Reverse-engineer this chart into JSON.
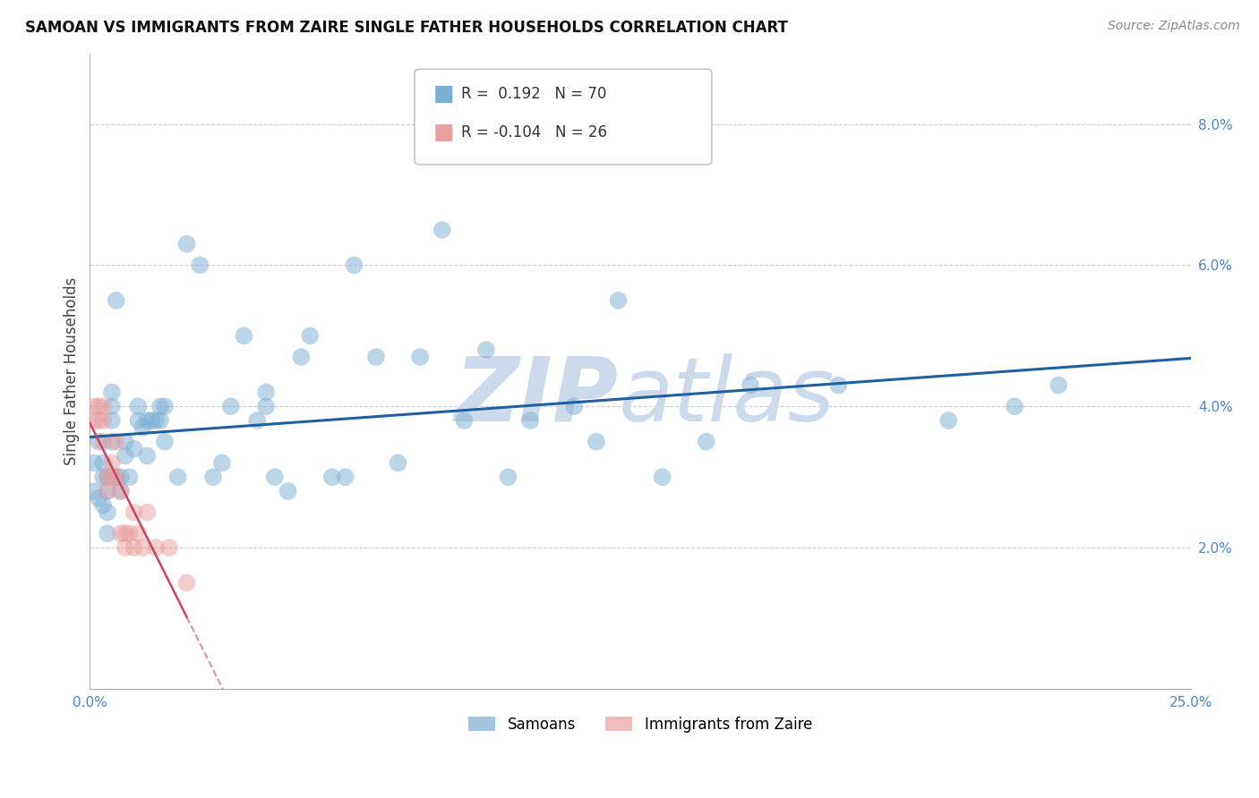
{
  "title": "SAMOAN VS IMMIGRANTS FROM ZAIRE SINGLE FATHER HOUSEHOLDS CORRELATION CHART",
  "source": "Source: ZipAtlas.com",
  "ylabel": "Single Father Households",
  "xlim": [
    0.0,
    0.25
  ],
  "ylim": [
    0.0,
    0.09
  ],
  "xticks": [
    0.0,
    0.05,
    0.1,
    0.15,
    0.2,
    0.25
  ],
  "yticks": [
    0.02,
    0.04,
    0.06,
    0.08
  ],
  "xticklabels": [
    "0.0%",
    "",
    "",
    "",
    "",
    "25.0%"
  ],
  "yticklabels": [
    "2.0%",
    "4.0%",
    "6.0%",
    "8.0%"
  ],
  "samoan_R": 0.192,
  "samoan_N": 70,
  "zaire_R": -0.104,
  "zaire_N": 26,
  "blue_color": "#7bafd4",
  "pink_color": "#e8a0a0",
  "blue_line_color": "#2060a0",
  "pink_line_color": "#d04060",
  "watermark_color": "#ccdaeb",
  "samoan_x": [
    0.001,
    0.001,
    0.002,
    0.002,
    0.003,
    0.003,
    0.003,
    0.004,
    0.004,
    0.004,
    0.004,
    0.005,
    0.005,
    0.005,
    0.005,
    0.005,
    0.006,
    0.006,
    0.007,
    0.007,
    0.008,
    0.008,
    0.009,
    0.01,
    0.011,
    0.011,
    0.012,
    0.013,
    0.013,
    0.014,
    0.015,
    0.016,
    0.016,
    0.017,
    0.017,
    0.02,
    0.022,
    0.025,
    0.028,
    0.03,
    0.032,
    0.035,
    0.038,
    0.04,
    0.04,
    0.042,
    0.045,
    0.048,
    0.05,
    0.055,
    0.058,
    0.06,
    0.065,
    0.07,
    0.075,
    0.08,
    0.085,
    0.09,
    0.095,
    0.1,
    0.11,
    0.115,
    0.12,
    0.13,
    0.14,
    0.15,
    0.17,
    0.195,
    0.21,
    0.22
  ],
  "samoan_y": [
    0.032,
    0.028,
    0.035,
    0.027,
    0.03,
    0.032,
    0.026,
    0.022,
    0.025,
    0.03,
    0.028,
    0.035,
    0.038,
    0.04,
    0.042,
    0.03,
    0.055,
    0.03,
    0.03,
    0.028,
    0.033,
    0.035,
    0.03,
    0.034,
    0.038,
    0.04,
    0.037,
    0.033,
    0.038,
    0.038,
    0.038,
    0.04,
    0.038,
    0.04,
    0.035,
    0.03,
    0.063,
    0.06,
    0.03,
    0.032,
    0.04,
    0.05,
    0.038,
    0.04,
    0.042,
    0.03,
    0.028,
    0.047,
    0.05,
    0.03,
    0.03,
    0.06,
    0.047,
    0.032,
    0.047,
    0.065,
    0.038,
    0.048,
    0.03,
    0.038,
    0.04,
    0.035,
    0.055,
    0.03,
    0.035,
    0.043,
    0.043,
    0.038,
    0.04,
    0.043
  ],
  "zaire_x": [
    0.001,
    0.001,
    0.002,
    0.002,
    0.003,
    0.003,
    0.003,
    0.004,
    0.004,
    0.005,
    0.005,
    0.006,
    0.006,
    0.007,
    0.007,
    0.008,
    0.008,
    0.009,
    0.01,
    0.01,
    0.011,
    0.012,
    0.013,
    0.015,
    0.018,
    0.022
  ],
  "zaire_y": [
    0.038,
    0.04,
    0.04,
    0.038,
    0.04,
    0.038,
    0.035,
    0.028,
    0.03,
    0.03,
    0.032,
    0.03,
    0.035,
    0.028,
    0.022,
    0.022,
    0.02,
    0.022,
    0.025,
    0.02,
    0.022,
    0.02,
    0.025,
    0.02,
    0.02,
    0.015
  ]
}
